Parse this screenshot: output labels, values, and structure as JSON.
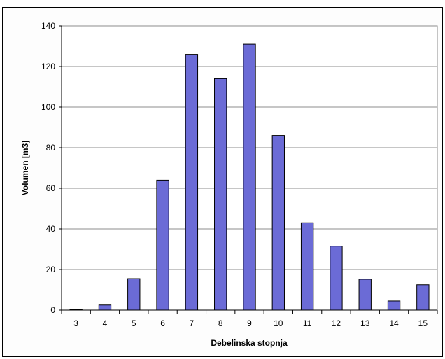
{
  "chart_data": {
    "type": "bar",
    "title": "",
    "xlabel": "Debelinska stopnja",
    "ylabel": "Volumen [m3]",
    "categories": [
      "3",
      "4",
      "5",
      "6",
      "7",
      "8",
      "9",
      "10",
      "11",
      "12",
      "13",
      "14",
      "15"
    ],
    "values": [
      0.3,
      2.5,
      15.5,
      64,
      126,
      114,
      131,
      86,
      43,
      31.5,
      15.2,
      4.5,
      12.5
    ],
    "ylim": [
      0,
      140
    ],
    "yticks": [
      "0",
      "20",
      "40",
      "60",
      "80",
      "100",
      "120",
      "140"
    ],
    "grid": true,
    "legend": "none",
    "colors": {
      "bar_fill": "#6b6bd6",
      "bar_stroke": "#000000",
      "plot_background": "#ffffff",
      "grid": "#8c8c8c"
    }
  }
}
